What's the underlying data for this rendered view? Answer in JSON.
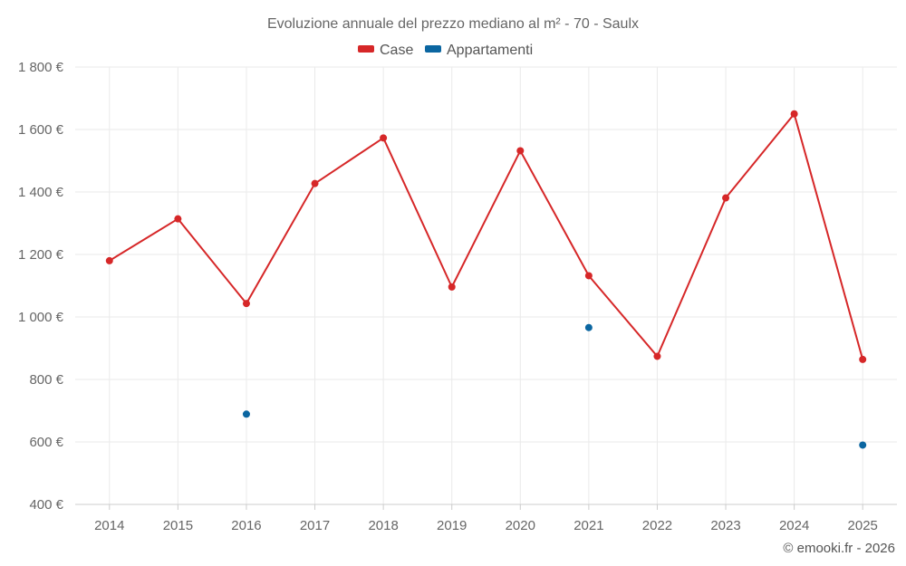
{
  "chart_data": {
    "type": "line",
    "title": "Evoluzione annuale del prezzo mediano al m² - 70 - Saulx",
    "categories": [
      "2014",
      "2015",
      "2016",
      "2017",
      "2018",
      "2019",
      "2020",
      "2021",
      "2022",
      "2023",
      "2024",
      "2025"
    ],
    "ylim": [
      400,
      1800
    ],
    "y_ticks": [
      400,
      600,
      800,
      1000,
      1200,
      1400,
      1600,
      1800
    ],
    "y_tick_labels": [
      "400 €",
      "600 €",
      "800 €",
      "1 000 €",
      "1 200 €",
      "1 400 €",
      "1 600 €",
      "1 800 €"
    ],
    "grid": true,
    "legend_position": "top-center",
    "series": [
      {
        "name": "Case",
        "color": "#d62728",
        "mode": "line+markers",
        "values": [
          1180,
          1314,
          1043,
          1427,
          1573,
          1096,
          1532,
          1132,
          874,
          1381,
          1650,
          864
        ]
      },
      {
        "name": "Appartamenti",
        "color": "#0b66a1",
        "mode": "markers",
        "values": [
          null,
          null,
          689,
          null,
          null,
          null,
          null,
          966,
          null,
          null,
          null,
          590
        ]
      }
    ]
  },
  "credit": "© emooki.fr - 2026"
}
